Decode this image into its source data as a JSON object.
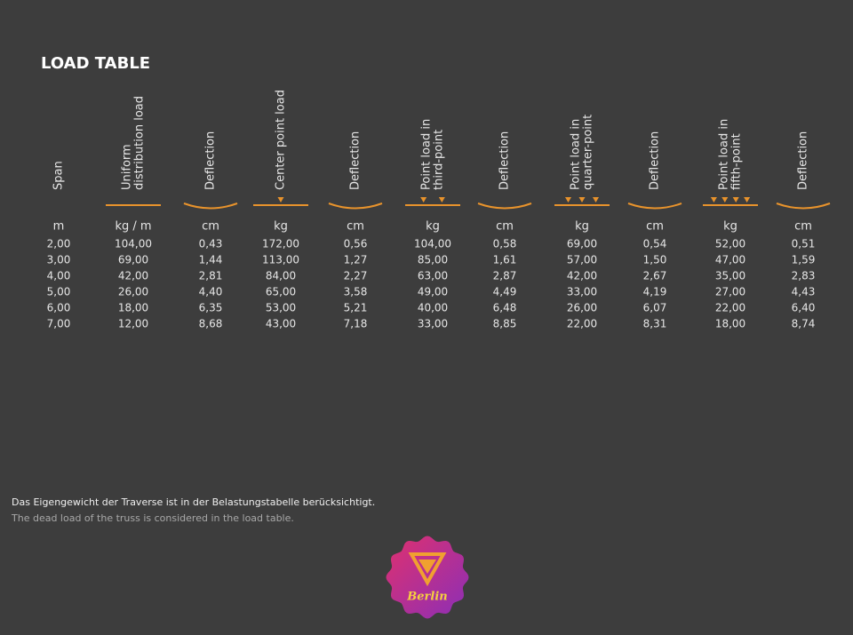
{
  "title": "LOAD TABLE",
  "columns": [
    {
      "header": [
        "Span"
      ],
      "unit": "m"
    },
    {
      "header": [
        "Uniform",
        "distribution load"
      ],
      "unit": "kg / m"
    },
    {
      "header": [
        "Deflection"
      ],
      "unit": "cm"
    },
    {
      "header": [
        "Center point load"
      ],
      "unit": "kg"
    },
    {
      "header": [
        "Deflection"
      ],
      "unit": "cm"
    },
    {
      "header": [
        "Point load in",
        "third-point"
      ],
      "unit": "kg"
    },
    {
      "header": [
        "Deflection"
      ],
      "unit": "cm"
    },
    {
      "header": [
        "Point load in",
        "quarter-point"
      ],
      "unit": "kg"
    },
    {
      "header": [
        "Deflection"
      ],
      "unit": "cm"
    },
    {
      "header": [
        "Point load in",
        "fifth-point"
      ],
      "unit": "kg"
    },
    {
      "header": [
        "Deflection"
      ],
      "unit": "cm"
    }
  ],
  "rows": [
    [
      "2,00",
      "104,00",
      "0,43",
      "172,00",
      "0,56",
      "104,00",
      "0,58",
      "69,00",
      "0,54",
      "52,00",
      "0,51"
    ],
    [
      "3,00",
      "69,00",
      "1,44",
      "113,00",
      "1,27",
      "85,00",
      "1,61",
      "57,00",
      "1,50",
      "47,00",
      "1,59"
    ],
    [
      "4,00",
      "42,00",
      "2,81",
      "84,00",
      "2,27",
      "63,00",
      "2,87",
      "42,00",
      "2,67",
      "35,00",
      "2,83"
    ],
    [
      "5,00",
      "26,00",
      "4,40",
      "65,00",
      "3,58",
      "49,00",
      "4,49",
      "33,00",
      "4,19",
      "27,00",
      "4,43"
    ],
    [
      "6,00",
      "18,00",
      "6,35",
      "53,00",
      "5,21",
      "40,00",
      "6,48",
      "26,00",
      "6,07",
      "22,00",
      "6,40"
    ],
    [
      "7,00",
      "12,00",
      "8,68",
      "43,00",
      "7,18",
      "33,00",
      "8,85",
      "22,00",
      "8,31",
      "18,00",
      "8,74"
    ]
  ],
  "notes": [
    "Das Eigengewicht der Traverse ist in der Belastungstabelle berücksichtigt.",
    "The dead load of the truss is considered in the load table."
  ],
  "logo": {
    "text": "Berlin"
  }
}
